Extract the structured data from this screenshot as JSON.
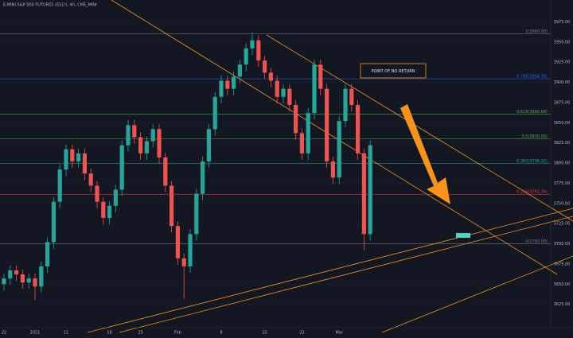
{
  "chart_data": {
    "type": "candlestick",
    "title": "E-MINI S&P 500 FUTURES (ES1!), 4h, CME_MINI",
    "annotation": "POINT OF NO RETURN",
    "up_color": "#26a69a",
    "down_color": "#ef5350",
    "ylim": [
      3600,
      4000
    ],
    "yticks": [
      {
        "value": 3625,
        "label": "3625.00"
      },
      {
        "value": 3650,
        "label": "3650.00"
      },
      {
        "value": 3675,
        "label": "3675.00"
      },
      {
        "value": 3700,
        "label": "3700.00"
      },
      {
        "value": 3725,
        "label": "3725.00"
      },
      {
        "value": 3750,
        "label": "3750.00"
      },
      {
        "value": 3775,
        "label": "3775.00"
      },
      {
        "value": 3800,
        "label": "3800.00"
      },
      {
        "value": 3825,
        "label": "3825.00"
      },
      {
        "value": 3850,
        "label": "3850.00"
      },
      {
        "value": 3875,
        "label": "3875.00"
      },
      {
        "value": 3900,
        "label": "3900.00"
      },
      {
        "value": 3925,
        "label": "3925.00"
      },
      {
        "value": 3950,
        "label": "3950.00"
      },
      {
        "value": 3975,
        "label": "3975.00"
      }
    ],
    "levels": [
      {
        "label": "1(3960.00)",
        "value": 3960,
        "color": "#787b86"
      },
      {
        "label": "0.786(3904.36)",
        "value": 3904.36,
        "color": "#2962ff"
      },
      {
        "label": "0.618(3860.68)",
        "value": 3860.68,
        "color": "#4caf50"
      },
      {
        "label": "0.5(3830.00)",
        "value": 3830,
        "color": "#4caf50"
      },
      {
        "label": "0.382(3799.32)",
        "value": 3799.32,
        "color": "#26a69a"
      },
      {
        "label": "0.236(3761.36)",
        "value": 3761.36,
        "color": "#f23645"
      },
      {
        "label": "0(3700.00)",
        "value": 3700,
        "color": "#787b86"
      }
    ],
    "categories": [
      "22",
      null,
      null,
      null,
      null,
      "2021",
      null,
      null,
      null,
      null,
      "11",
      null,
      null,
      null,
      null,
      null,
      null,
      "18",
      null,
      null,
      null,
      null,
      "25",
      null,
      null,
      null,
      null,
      null,
      "Feb",
      null,
      null,
      null,
      null,
      null,
      null,
      "8",
      null,
      null,
      null,
      null,
      null,
      null,
      "15",
      null,
      null,
      null,
      null,
      null,
      "22",
      null,
      null,
      null,
      null,
      null,
      "Mar",
      null,
      null,
      null,
      null,
      null
    ],
    "open": [
      3650,
      3657,
      3667,
      3662,
      3652,
      3657,
      3647,
      3672,
      3702,
      3752,
      3792,
      3817,
      3802,
      3812,
      3787,
      3772,
      3752,
      3732,
      3747,
      3767,
      3822,
      3847,
      3832,
      3812,
      3827,
      3842,
      3807,
      3772,
      3722,
      3682,
      3672,
      3712,
      3762,
      3802,
      3842,
      3882,
      3902,
      3892,
      3907,
      3922,
      3942,
      3952,
      3927,
      3912,
      3902,
      3882,
      3892,
      3872,
      3837,
      3812,
      3862,
      3922,
      3892,
      3802,
      3782,
      3852,
      3892,
      3872,
      3812,
      3712
    ],
    "high": [
      3663,
      3673,
      3673,
      3668,
      3663,
      3663,
      3678,
      3708,
      3758,
      3798,
      3823,
      3823,
      3818,
      3818,
      3793,
      3778,
      3758,
      3753,
      3773,
      3828,
      3853,
      3853,
      3838,
      3833,
      3848,
      3848,
      3813,
      3778,
      3728,
      3688,
      3718,
      3768,
      3808,
      3848,
      3888,
      3908,
      3908,
      3913,
      3928,
      3948,
      3962,
      3958,
      3933,
      3918,
      3908,
      3898,
      3898,
      3878,
      3843,
      3868,
      3928,
      3928,
      3898,
      3808,
      3858,
      3898,
      3898,
      3878,
      3818,
      3828
    ],
    "low": [
      3642,
      3649,
      3654,
      3644,
      3644,
      3630,
      3639,
      3664,
      3694,
      3744,
      3784,
      3794,
      3794,
      3779,
      3764,
      3744,
      3724,
      3724,
      3739,
      3759,
      3814,
      3824,
      3804,
      3804,
      3819,
      3799,
      3764,
      3714,
      3674,
      3632,
      3664,
      3704,
      3754,
      3794,
      3834,
      3874,
      3884,
      3884,
      3899,
      3914,
      3934,
      3919,
      3904,
      3894,
      3874,
      3874,
      3864,
      3829,
      3804,
      3804,
      3854,
      3884,
      3794,
      3774,
      3774,
      3844,
      3864,
      3804,
      3692,
      3704
    ],
    "close": [
      3657,
      3667,
      3662,
      3652,
      3657,
      3647,
      3672,
      3702,
      3752,
      3792,
      3817,
      3802,
      3812,
      3787,
      3772,
      3752,
      3732,
      3747,
      3767,
      3822,
      3847,
      3832,
      3812,
      3827,
      3842,
      3807,
      3772,
      3722,
      3682,
      3672,
      3712,
      3762,
      3802,
      3842,
      3882,
      3902,
      3892,
      3907,
      3922,
      3942,
      3952,
      3927,
      3912,
      3902,
      3882,
      3892,
      3872,
      3837,
      3812,
      3862,
      3922,
      3892,
      3802,
      3782,
      3852,
      3892,
      3872,
      3812,
      3712,
      3822
    ]
  }
}
